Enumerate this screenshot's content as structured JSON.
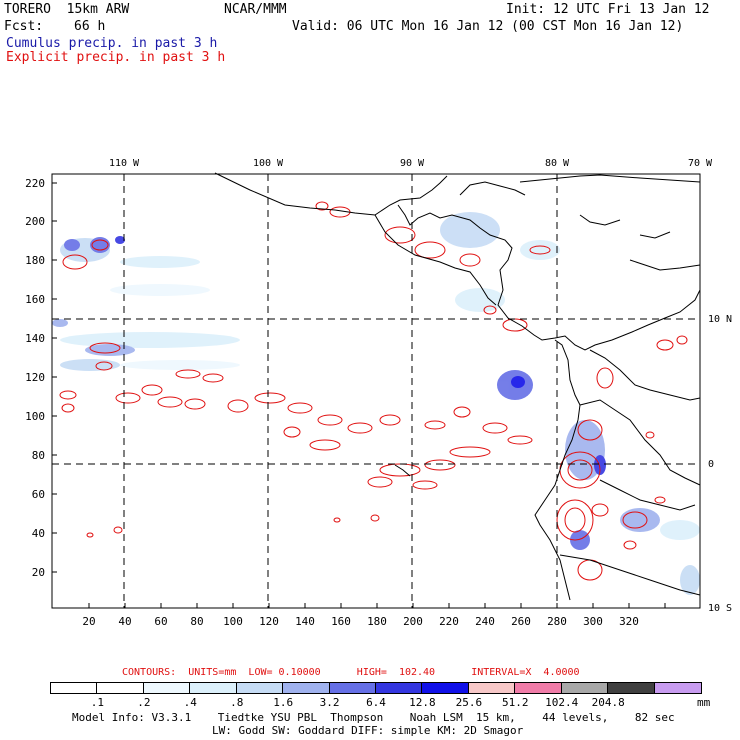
{
  "header": {
    "model": "TORERO  15km ARW",
    "org": "NCAR/MMM",
    "init": "Init: 12 UTC Fri 13 Jan 12",
    "fcst_label": "Fcst:",
    "fcst_value": "66 h",
    "valid": "Valid: 06 UTC Mon 16 Jan 12 (00 CST Mon 16 Jan 12)",
    "line_cumulus": "Cumulus precip. in past 3 h",
    "line_explicit": "Explicit precip. in past 3 h"
  },
  "map": {
    "lon_labels": [
      "110 W",
      "100 W",
      "90 W",
      "80 W",
      "70 W"
    ],
    "lat_labels": [
      "10 N",
      "0",
      "10 S"
    ],
    "y_ticks": [
      "220",
      "200",
      "180",
      "160",
      "140",
      "120",
      "100",
      "80",
      "60",
      "40",
      "20"
    ],
    "x_ticks": [
      "20",
      "40",
      "60",
      "80",
      "100",
      "120",
      "140",
      "160",
      "180",
      "200",
      "220",
      "240",
      "260",
      "280",
      "300",
      "320"
    ],
    "colors": {
      "land": "#000000",
      "grid": "#000000",
      "contour": "#e01010",
      "cumulus": "#3a44e0"
    }
  },
  "legend": {
    "contours_line": "CONTOURS:  UNITS=mm  LOW= 0.10000      HIGH=  102.40      INTERVAL=X  4.0000",
    "scale_values": [
      ".1",
      ".2",
      ".4",
      ".8",
      "1.6",
      "3.2",
      "6.4",
      "12.8",
      "25.6",
      "51.2",
      "102.4",
      "204.8"
    ],
    "scale_colors": [
      "#ffffff",
      "#ffffff",
      "#eef8fe",
      "#dcf0fb",
      "#c6dcf5",
      "#a0b2ee",
      "#6670e6",
      "#3436e0",
      "#1010e8",
      "#f7c8c8",
      "#f07ca8",
      "#a8a8a8",
      "#404040",
      "#c89cf0"
    ],
    "units": "mm"
  },
  "footer": {
    "line1": "Model Info: V3.3.1    Tiedtke YSU PBL  Thompson    Noah LSM  15 km,    44 levels,    82 sec",
    "line2": "LW: Godd SW: Goddard DIFF: simple KM: 2D Smagor"
  }
}
